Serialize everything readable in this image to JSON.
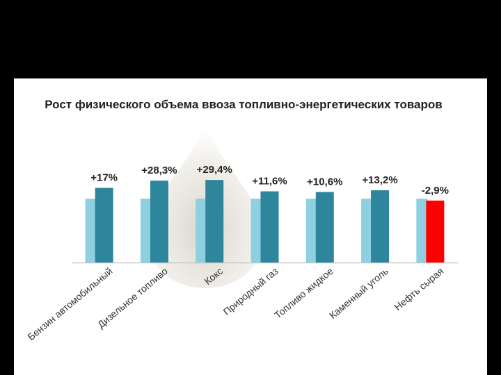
{
  "chart_data": {
    "type": "bar",
    "title": "Рост физического объема ввоза топливно-энергетических товаров",
    "categories": [
      "Бензин автомобильный",
      "Дизельное топливо",
      "Кокс",
      "Природный газ",
      "Топливо жидкое",
      "Каменный уголь",
      "Нефть сырая"
    ],
    "series": [
      {
        "values": [
          100,
          100,
          100,
          100,
          100,
          100,
          100
        ],
        "color": "#8ECFE0"
      },
      {
        "values": [
          117,
          128.3,
          129.4,
          111.6,
          110.6,
          113.2,
          97.1
        ],
        "color": "#2E869C",
        "highlight_color": "#FF0000"
      }
    ],
    "data_labels": [
      "+17%",
      "+28,3%",
      "+29,4%",
      "+11,6%",
      "+10,6%",
      "+13,2%",
      "-2,9%"
    ],
    "ylim": [
      0,
      135
    ],
    "grid": false,
    "legend": "none"
  }
}
